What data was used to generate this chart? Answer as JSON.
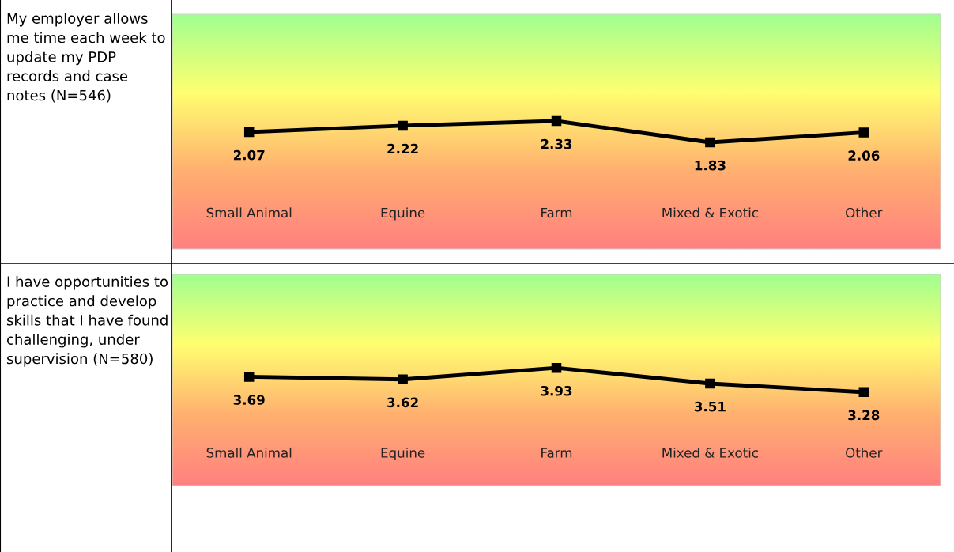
{
  "chart_data": [
    {
      "type": "line",
      "title": "My employer allows me time each week to update my PDP records and case notes (N=546)",
      "categories": [
        "Small Animal",
        "Equine",
        "Farm",
        "Mixed & Exotic",
        "Other"
      ],
      "series": [
        {
          "color": "#000000",
          "values": [
            2.07,
            2.22,
            2.33,
            1.83,
            2.06
          ]
        }
      ],
      "data_labels": true,
      "marker": "square",
      "line_style": "solid"
    },
    {
      "type": "line",
      "title": "I have opportunities to practice and develop skills that I have found challenging, under supervision (N=580)",
      "categories": [
        "Small Animal",
        "Equine",
        "Farm",
        "Mixed & Exotic",
        "Other"
      ],
      "series": [
        {
          "color": "#000000",
          "values": [
            3.69,
            3.62,
            3.93,
            3.51,
            3.28
          ]
        }
      ],
      "data_labels": true,
      "marker": "square",
      "line_style": "solid"
    }
  ]
}
